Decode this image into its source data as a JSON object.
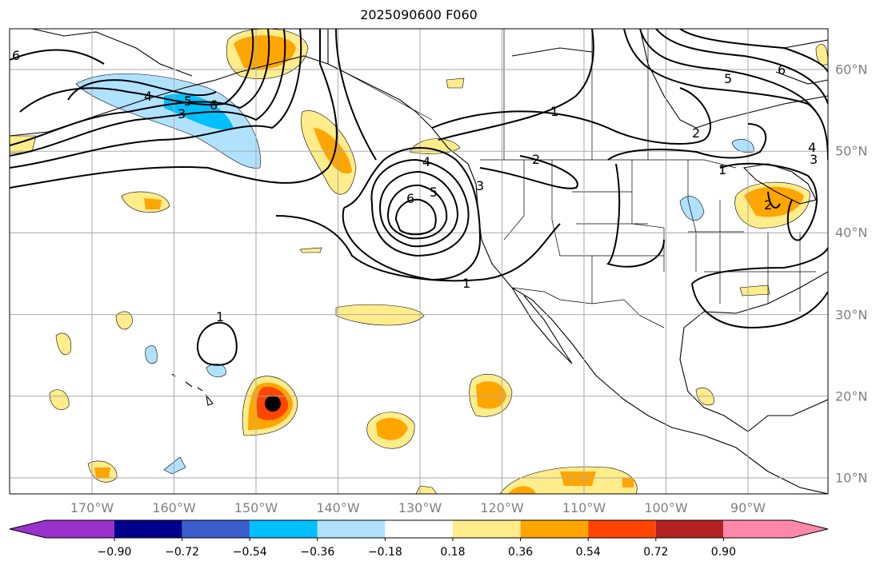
{
  "title": "2025090600 F060",
  "longitude_labels": [
    {
      "lon": -170,
      "label": "170°W"
    },
    {
      "lon": -160,
      "label": "160°W"
    },
    {
      "lon": -150,
      "label": "150°W"
    },
    {
      "lon": -140,
      "label": "140°W"
    },
    {
      "lon": -130,
      "label": "130°W"
    },
    {
      "lon": -120,
      "label": "120°W"
    },
    {
      "lon": -110,
      "label": "110°W"
    },
    {
      "lon": -100,
      "label": "100°W"
    },
    {
      "lon": -90,
      "label": "90°W"
    }
  ],
  "latitude_labels": [
    {
      "lat": 60,
      "label": "60°N"
    },
    {
      "lat": 50,
      "label": "50°N"
    },
    {
      "lat": 40,
      "label": "40°N"
    },
    {
      "lat": 30,
      "label": "30°N"
    },
    {
      "lat": 20,
      "label": "20°N"
    },
    {
      "lat": 10,
      "label": "10°N"
    }
  ],
  "colorbar": {
    "levels": [
      "−0.90",
      "−0.72",
      "−0.54",
      "−0.36",
      "−0.18",
      "0.18",
      "0.36",
      "0.54",
      "0.72",
      "0.90"
    ],
    "colors": [
      "#9932cc",
      "#00008b",
      "#3a5fcd",
      "#00bfff",
      "#b0e2ff",
      "#ffffff",
      "#ffec8b",
      "#ffa500",
      "#ff4500",
      "#b22222",
      "#ff88aa"
    ]
  },
  "contour_labels": [
    "6",
    "4",
    "5",
    "6",
    "3",
    "1",
    "1",
    "4",
    "6",
    "5",
    "3",
    "2",
    "1",
    "2",
    "5",
    "6",
    "4",
    "3",
    "1",
    "2"
  ]
}
